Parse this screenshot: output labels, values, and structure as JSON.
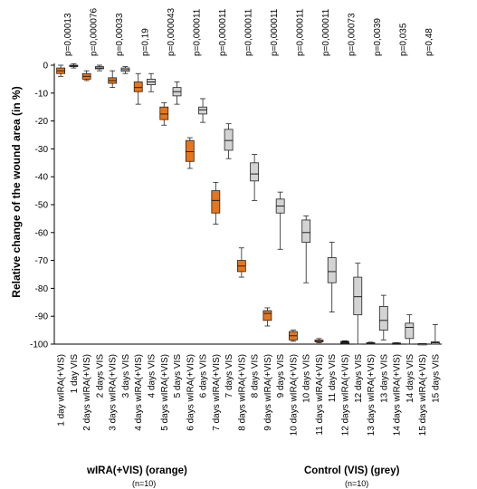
{
  "chart_data": {
    "type": "box",
    "ylabel": "Relative change of the wound area (in %)",
    "ylim": [
      -100,
      0
    ],
    "yticks": [
      0,
      -10,
      -20,
      -30,
      -40,
      -50,
      -60,
      -70,
      -80,
      -90,
      -100
    ],
    "ytick_labels": [
      "0",
      "-10",
      "-20",
      "-30",
      "-40",
      "-50",
      "-60",
      "-70",
      "-80",
      "-90",
      "-100"
    ],
    "colors": {
      "wIRA": "#e8751a",
      "VIS": "#d3d3d3",
      "black": "#000000"
    },
    "categories": [
      "1 day wIRA(+VIS)",
      "1 day VIS",
      "2 days wIRA(+VIS)",
      "2 days VIS",
      "3 days wIRA(+VIS)",
      "3 days VIS",
      "4 days wIRA(+VIS)",
      "4 days VIS",
      "5 days wIRA(+VIS)",
      "5 days VIS",
      "6 days wIRA(+VIS)",
      "6 days VIS",
      "7 days wIRA(+VIS)",
      "7 days VIS",
      "8 days wIRA(+VIS)",
      "8 days VIS",
      "9 days wIRA(+VIS)",
      "9 days VIS",
      "10 days wIRA(+VIS)",
      "10 days VIS",
      "11 days wIRA(+VIS)",
      "11 days VIS",
      "12 days wIRA(+VIS)",
      "12 days VIS",
      "13 days wIRA(+VIS)",
      "13 days VIS",
      "14 days wIRA(+VIS)",
      "14 days VIS",
      "15 days wIRA(+VIS)",
      "15 days VIS"
    ],
    "boxes": [
      {
        "min": -4,
        "q1": -3,
        "median": -2,
        "q3": -1,
        "max": 0,
        "color": "wIRA"
      },
      {
        "min": -1,
        "q1": -0.5,
        "median": -0.2,
        "q3": 0,
        "max": 0.5,
        "color": "black"
      },
      {
        "min": -5.5,
        "q1": -5,
        "median": -4,
        "q3": -3,
        "max": -2,
        "color": "wIRA"
      },
      {
        "min": -2,
        "q1": -1.3,
        "median": -1,
        "q3": -0.5,
        "max": 0,
        "color": "VIS"
      },
      {
        "min": -8,
        "q1": -6.5,
        "median": -5.5,
        "q3": -4.5,
        "max": -2,
        "color": "wIRA"
      },
      {
        "min": -3,
        "q1": -2.2,
        "median": -1.6,
        "q3": -1,
        "max": -0.5,
        "color": "VIS"
      },
      {
        "min": -14,
        "q1": -9.5,
        "median": -8,
        "q3": -6,
        "max": -3,
        "color": "wIRA"
      },
      {
        "min": -9.5,
        "q1": -7,
        "median": -6,
        "q3": -5,
        "max": -3,
        "color": "VIS"
      },
      {
        "min": -21.5,
        "q1": -19.5,
        "median": -17.5,
        "q3": -15,
        "max": -13.5,
        "color": "wIRA"
      },
      {
        "min": -14,
        "q1": -11,
        "median": -9.5,
        "q3": -8,
        "max": -6,
        "color": "VIS"
      },
      {
        "min": -37,
        "q1": -34.5,
        "median": -31,
        "q3": -27,
        "max": -26,
        "color": "wIRA"
      },
      {
        "min": -20.5,
        "q1": -17.5,
        "median": -16,
        "q3": -15,
        "max": -12,
        "color": "VIS"
      },
      {
        "min": -57,
        "q1": -53,
        "median": -48.5,
        "q3": -45,
        "max": -42,
        "color": "wIRA"
      },
      {
        "min": -33.5,
        "q1": -30.5,
        "median": -27,
        "q3": -23,
        "max": -21,
        "color": "VIS"
      },
      {
        "min": -76,
        "q1": -74,
        "median": -72,
        "q3": -70,
        "max": -65.5,
        "color": "wIRA"
      },
      {
        "min": -48.5,
        "q1": -41.5,
        "median": -39,
        "q3": -35,
        "max": -32,
        "color": "VIS"
      },
      {
        "min": -93.5,
        "q1": -91.5,
        "median": -89,
        "q3": -88,
        "max": -87,
        "color": "wIRA"
      },
      {
        "min": -66,
        "q1": -53,
        "median": -50.5,
        "q3": -48,
        "max": -45.5,
        "color": "VIS"
      },
      {
        "min": -99,
        "q1": -98.5,
        "median": -97,
        "q3": -95.5,
        "max": -95,
        "color": "wIRA"
      },
      {
        "min": -78,
        "q1": -63.5,
        "median": -60,
        "q3": -55.5,
        "max": -54,
        "color": "VIS"
      },
      {
        "min": -99.5,
        "q1": -99.2,
        "median": -99,
        "q3": -98.5,
        "max": -98,
        "color": "wIRA"
      },
      {
        "min": -88.5,
        "q1": -78,
        "median": -74,
        "q3": -69,
        "max": -63.5,
        "color": "VIS"
      },
      {
        "min": -100,
        "q1": -99.7,
        "median": -99.4,
        "q3": -99,
        "max": -98.8,
        "color": "black"
      },
      {
        "min": -100,
        "q1": -89.5,
        "median": -83,
        "q3": -76,
        "max": -71,
        "color": "VIS"
      },
      {
        "min": -100,
        "q1": -99.9,
        "median": -99.7,
        "q3": -99.5,
        "max": -99.3,
        "color": "black"
      },
      {
        "min": -98.5,
        "q1": -95,
        "median": -91.5,
        "q3": -86.5,
        "max": -82.5,
        "color": "VIS"
      },
      {
        "min": -100,
        "q1": -99.9,
        "median": -99.8,
        "q3": -99.6,
        "max": -99.5,
        "color": "black"
      },
      {
        "min": -100,
        "q1": -98,
        "median": -94,
        "q3": -92.5,
        "max": -89.5,
        "color": "VIS"
      },
      {
        "min": -100,
        "q1": -99.9,
        "median": -99.9,
        "q3": -99.8,
        "max": -99.8,
        "color": "VIS"
      },
      {
        "min": -100,
        "q1": -100,
        "median": -99.5,
        "q3": -99.2,
        "max": -93,
        "color": "VIS"
      }
    ],
    "pvalues": [
      "p=0,00013",
      "p=0,000076",
      "p=0,00033",
      "p=0,19",
      "p=0,000043",
      "p=0,000011",
      "p=0,000011",
      "p=0,000011",
      "p=0,000011",
      "p=0,000011",
      "p=0,000011",
      "p=0,00073",
      "p=0,0039",
      "p=0,035",
      "p=0,48"
    ],
    "legend": [
      {
        "label": "wIRA(+VIS) (orange)",
        "n": "(n=10)"
      },
      {
        "label": "Control (VIS) (grey)",
        "n": "(n=10)"
      }
    ]
  }
}
